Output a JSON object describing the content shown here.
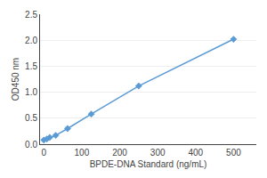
{
  "chart_data": {
    "type": "line",
    "x": [
      0,
      7.8,
      15.6,
      31.25,
      62.5,
      125,
      250,
      500
    ],
    "values": [
      0.08,
      0.1,
      0.13,
      0.17,
      0.3,
      0.58,
      1.12,
      2.02
    ],
    "xlabel": "BPDE-DNA Standard (ng/mL)",
    "ylabel": "OD450 nm",
    "xlim": [
      -10,
      560
    ],
    "ylim": [
      0,
      2.5
    ],
    "xticks": [
      0,
      100,
      200,
      300,
      400,
      500
    ],
    "yticks": [
      {
        "value": 0,
        "label": "0.0"
      },
      0.5,
      {
        "value": 1.0,
        "label": "1.0"
      },
      1.5,
      {
        "value": 2.0,
        "label": "2.0"
      },
      2.5
    ],
    "color": "#5b9bd5",
    "marker": "diamond",
    "grid": "y"
  }
}
